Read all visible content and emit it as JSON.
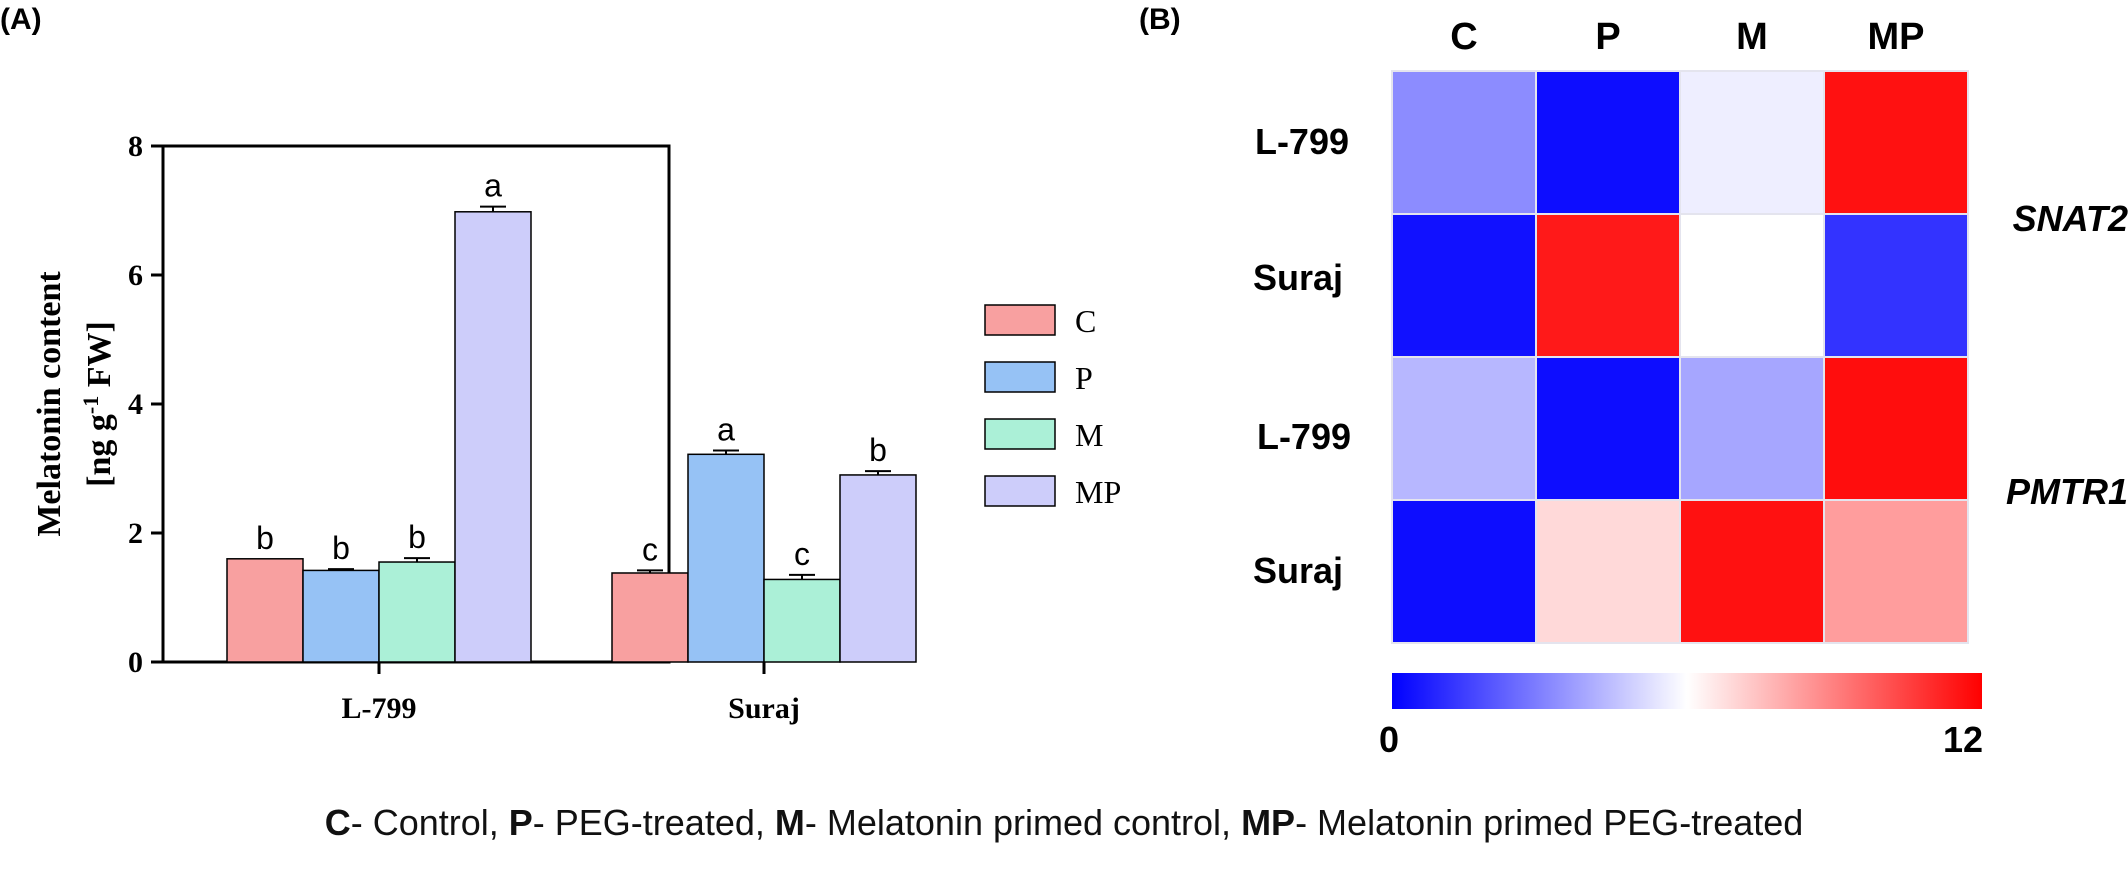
{
  "panels": {
    "a_label": "(A)",
    "b_label": "(B)"
  },
  "chart_data": [
    {
      "type": "bar",
      "panel": "(A)",
      "ylabel": "Melatonin content",
      "ylabel_unit": {
        "open": "[ng g",
        "sup": "-1",
        "close": " FW]"
      },
      "categories": [
        "L-799",
        "Suraj"
      ],
      "ylim": [
        0,
        8
      ],
      "yticks": [
        "0",
        "2",
        "4",
        "6",
        "8"
      ],
      "legend_position": "right",
      "series": [
        {
          "name": "C",
          "color": "#f8a0a0",
          "values": [
            1.6,
            1.38
          ],
          "errors": [
            0.0,
            0.04
          ],
          "letters": [
            "b",
            "c"
          ]
        },
        {
          "name": "P",
          "color": "#96c2f5",
          "values": [
            1.42,
            3.22
          ],
          "errors": [
            0.02,
            0.06
          ],
          "letters": [
            "b",
            "a"
          ]
        },
        {
          "name": "M",
          "color": "#abf0d7",
          "values": [
            1.55,
            1.28
          ],
          "errors": [
            0.06,
            0.07
          ],
          "letters": [
            "b",
            "c"
          ]
        },
        {
          "name": "MP",
          "color": "#cdcdfa",
          "values": [
            6.98,
            2.9
          ],
          "errors": [
            0.08,
            0.06
          ],
          "letters": [
            "a",
            "b"
          ]
        }
      ]
    },
    {
      "type": "heatmap",
      "panel": "(B)",
      "columns": [
        "C",
        "P",
        "M",
        "MP"
      ],
      "row_labels": [
        "L-799",
        "Suraj",
        "L-799",
        "Suraj"
      ],
      "gene_labels": [
        "SNAT2",
        "PMTR1"
      ],
      "values": [
        [
          3.3,
          0.3,
          5.6,
          11.6
        ],
        [
          0.4,
          11.4,
          6.0,
          1.2
        ],
        [
          4.3,
          0.3,
          3.9,
          11.7
        ],
        [
          0.3,
          6.9,
          11.6,
          8.3
        ]
      ],
      "colorbar": {
        "min": 0,
        "max": 12,
        "min_label": "0",
        "max_label": "12",
        "colors": [
          "#0000ff",
          "#ffffff",
          "#ff0000"
        ]
      }
    }
  ],
  "caption": [
    {
      "key": "C",
      "text": "- Control, "
    },
    {
      "key": "P",
      "text": "- PEG-treated, "
    },
    {
      "key": "M",
      "text": "- Melatonin primed control, "
    },
    {
      "key": "MP",
      "text": "- Melatonin primed PEG-treated"
    }
  ]
}
